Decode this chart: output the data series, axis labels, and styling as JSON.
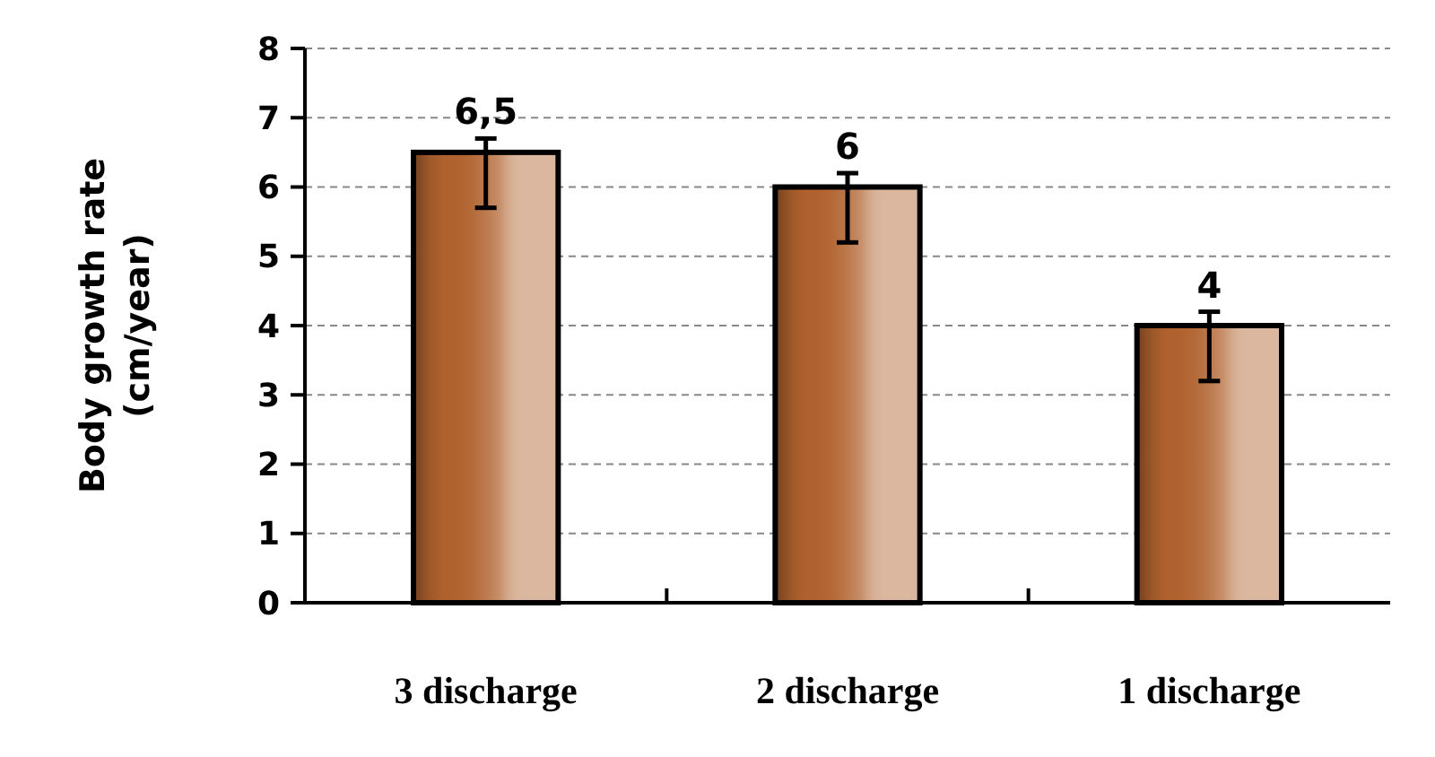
{
  "chart_data": {
    "type": "bar",
    "ylabel": "Body growth rate (cm/year)",
    "categories": [
      "3 discharge",
      "2 discharge",
      "1 discharge"
    ],
    "values": [
      6.5,
      6,
      4
    ],
    "errors": [
      [
        5.7,
        6.7
      ],
      [
        5.2,
        6.2
      ],
      [
        3.2,
        4.2
      ]
    ],
    "value_labels": [
      "6,5",
      "6",
      "4"
    ],
    "color": "#b0622e",
    "ylim": [
      0,
      8
    ],
    "yticks": [
      0,
      1,
      2,
      3,
      4,
      5,
      6,
      7,
      8
    ],
    "grid": "y"
  }
}
